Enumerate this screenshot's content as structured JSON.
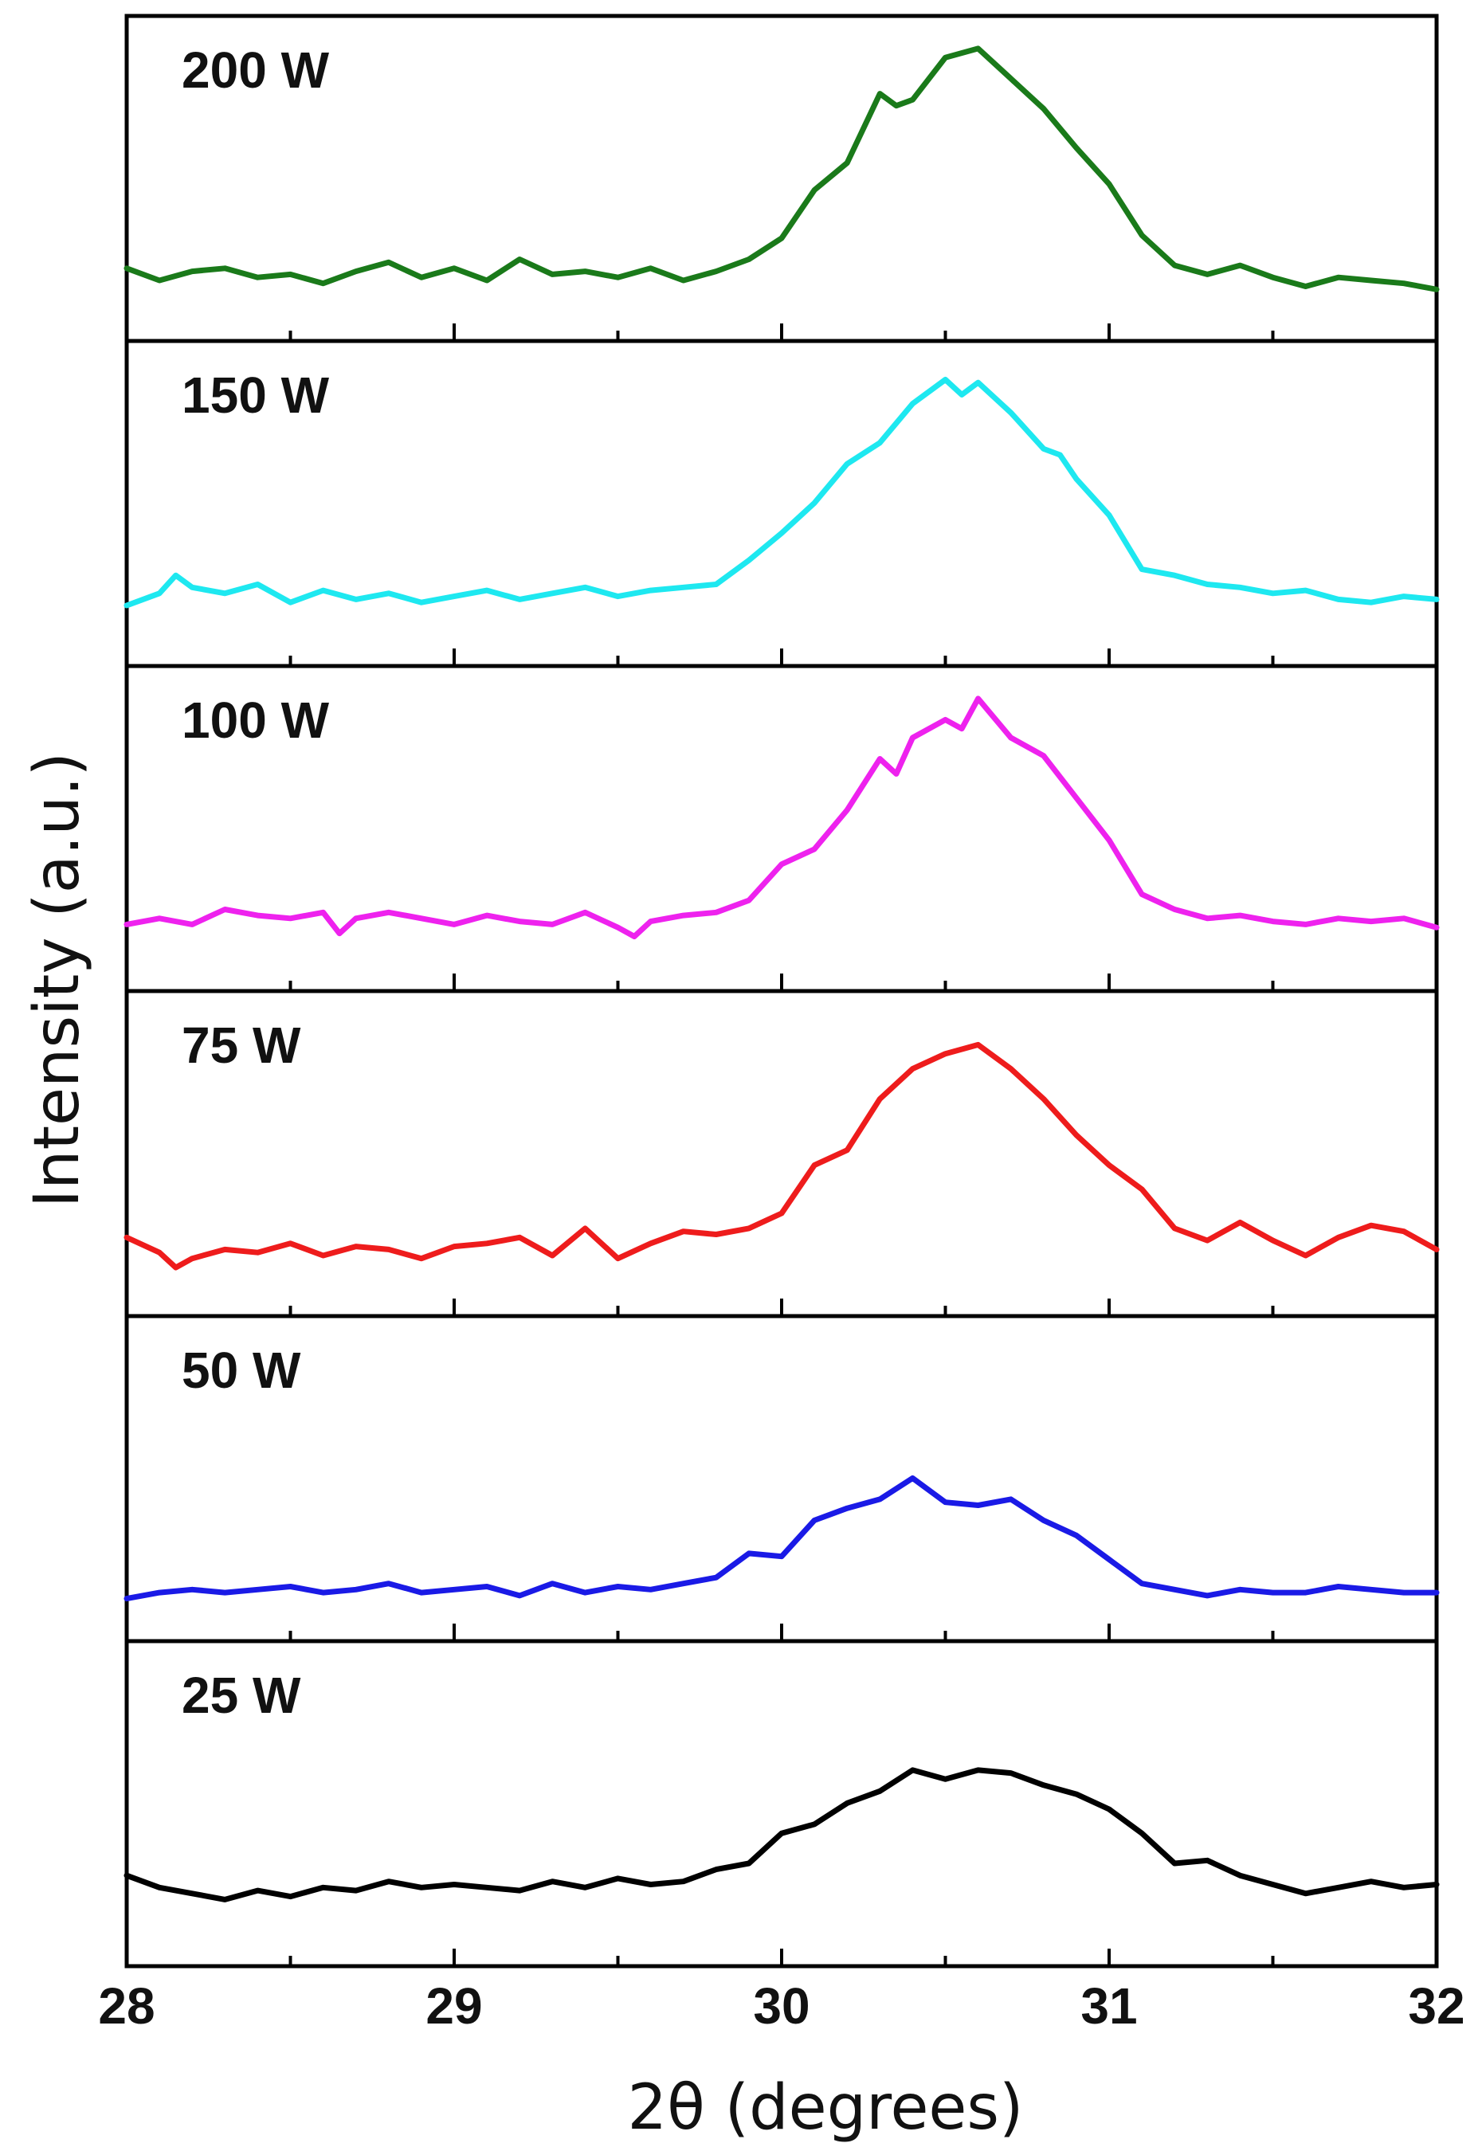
{
  "chart_data": {
    "type": "line",
    "layout": "stacked-panels",
    "xlabel": "2θ (degrees)",
    "ylabel": "Intensity (a.u.)",
    "xlim": [
      28,
      32
    ],
    "x_ticks": [
      "28",
      "29",
      "30",
      "31",
      "32"
    ],
    "x_minor_step": 0.5,
    "ylim": [
      0,
      1
    ],
    "y_ticks_shown": false,
    "series": [
      {
        "name": "200 W",
        "color": "#1a7a1a",
        "points": [
          [
            28.0,
            0.22
          ],
          [
            28.1,
            0.18
          ],
          [
            28.2,
            0.21
          ],
          [
            28.3,
            0.22
          ],
          [
            28.4,
            0.19
          ],
          [
            28.5,
            0.2
          ],
          [
            28.6,
            0.17
          ],
          [
            28.7,
            0.21
          ],
          [
            28.8,
            0.24
          ],
          [
            28.9,
            0.19
          ],
          [
            29.0,
            0.22
          ],
          [
            29.1,
            0.18
          ],
          [
            29.2,
            0.25
          ],
          [
            29.3,
            0.2
          ],
          [
            29.4,
            0.21
          ],
          [
            29.5,
            0.19
          ],
          [
            29.6,
            0.22
          ],
          [
            29.7,
            0.18
          ],
          [
            29.8,
            0.21
          ],
          [
            29.9,
            0.25
          ],
          [
            30.0,
            0.32
          ],
          [
            30.1,
            0.48
          ],
          [
            30.2,
            0.57
          ],
          [
            30.3,
            0.8
          ],
          [
            30.35,
            0.76
          ],
          [
            30.4,
            0.78
          ],
          [
            30.5,
            0.92
          ],
          [
            30.6,
            0.95
          ],
          [
            30.7,
            0.85
          ],
          [
            30.8,
            0.75
          ],
          [
            30.9,
            0.62
          ],
          [
            31.0,
            0.5
          ],
          [
            31.1,
            0.33
          ],
          [
            31.2,
            0.23
          ],
          [
            31.3,
            0.2
          ],
          [
            31.4,
            0.23
          ],
          [
            31.5,
            0.19
          ],
          [
            31.6,
            0.16
          ],
          [
            31.7,
            0.19
          ],
          [
            31.8,
            0.18
          ],
          [
            31.9,
            0.17
          ],
          [
            32.0,
            0.15
          ]
        ]
      },
      {
        "name": "150 W",
        "color": "#1ee8f0",
        "points": [
          [
            28.0,
            0.18
          ],
          [
            28.1,
            0.22
          ],
          [
            28.15,
            0.28
          ],
          [
            28.2,
            0.24
          ],
          [
            28.3,
            0.22
          ],
          [
            28.4,
            0.25
          ],
          [
            28.5,
            0.19
          ],
          [
            28.6,
            0.23
          ],
          [
            28.7,
            0.2
          ],
          [
            28.8,
            0.22
          ],
          [
            28.9,
            0.19
          ],
          [
            29.0,
            0.21
          ],
          [
            29.1,
            0.23
          ],
          [
            29.2,
            0.2
          ],
          [
            29.3,
            0.22
          ],
          [
            29.4,
            0.24
          ],
          [
            29.5,
            0.21
          ],
          [
            29.6,
            0.23
          ],
          [
            29.7,
            0.24
          ],
          [
            29.8,
            0.25
          ],
          [
            29.9,
            0.33
          ],
          [
            30.0,
            0.42
          ],
          [
            30.1,
            0.52
          ],
          [
            30.2,
            0.65
          ],
          [
            30.3,
            0.72
          ],
          [
            30.4,
            0.85
          ],
          [
            30.5,
            0.93
          ],
          [
            30.55,
            0.88
          ],
          [
            30.6,
            0.92
          ],
          [
            30.7,
            0.82
          ],
          [
            30.8,
            0.7
          ],
          [
            30.85,
            0.68
          ],
          [
            30.9,
            0.6
          ],
          [
            31.0,
            0.48
          ],
          [
            31.1,
            0.3
          ],
          [
            31.2,
            0.28
          ],
          [
            31.3,
            0.25
          ],
          [
            31.4,
            0.24
          ],
          [
            31.5,
            0.22
          ],
          [
            31.6,
            0.23
          ],
          [
            31.7,
            0.2
          ],
          [
            31.8,
            0.19
          ],
          [
            31.9,
            0.21
          ],
          [
            32.0,
            0.2
          ]
        ]
      },
      {
        "name": "100 W",
        "color": "#ee22ee",
        "points": [
          [
            28.0,
            0.2
          ],
          [
            28.1,
            0.22
          ],
          [
            28.2,
            0.2
          ],
          [
            28.3,
            0.25
          ],
          [
            28.4,
            0.23
          ],
          [
            28.5,
            0.22
          ],
          [
            28.6,
            0.24
          ],
          [
            28.65,
            0.17
          ],
          [
            28.7,
            0.22
          ],
          [
            28.8,
            0.24
          ],
          [
            28.9,
            0.22
          ],
          [
            29.0,
            0.2
          ],
          [
            29.1,
            0.23
          ],
          [
            29.2,
            0.21
          ],
          [
            29.3,
            0.2
          ],
          [
            29.4,
            0.24
          ],
          [
            29.5,
            0.19
          ],
          [
            29.55,
            0.16
          ],
          [
            29.6,
            0.21
          ],
          [
            29.7,
            0.23
          ],
          [
            29.8,
            0.24
          ],
          [
            29.9,
            0.28
          ],
          [
            30.0,
            0.4
          ],
          [
            30.1,
            0.45
          ],
          [
            30.2,
            0.58
          ],
          [
            30.3,
            0.75
          ],
          [
            30.35,
            0.7
          ],
          [
            30.4,
            0.82
          ],
          [
            30.5,
            0.88
          ],
          [
            30.55,
            0.85
          ],
          [
            30.6,
            0.95
          ],
          [
            30.7,
            0.82
          ],
          [
            30.8,
            0.76
          ],
          [
            30.9,
            0.62
          ],
          [
            31.0,
            0.48
          ],
          [
            31.1,
            0.3
          ],
          [
            31.2,
            0.25
          ],
          [
            31.3,
            0.22
          ],
          [
            31.4,
            0.23
          ],
          [
            31.5,
            0.21
          ],
          [
            31.6,
            0.2
          ],
          [
            31.7,
            0.22
          ],
          [
            31.8,
            0.21
          ],
          [
            31.9,
            0.22
          ],
          [
            32.0,
            0.19
          ]
        ]
      },
      {
        "name": "75 W",
        "color": "#ee1c1c",
        "points": [
          [
            28.0,
            0.24
          ],
          [
            28.1,
            0.19
          ],
          [
            28.15,
            0.14
          ],
          [
            28.2,
            0.17
          ],
          [
            28.3,
            0.2
          ],
          [
            28.4,
            0.19
          ],
          [
            28.5,
            0.22
          ],
          [
            28.6,
            0.18
          ],
          [
            28.7,
            0.21
          ],
          [
            28.8,
            0.2
          ],
          [
            28.9,
            0.17
          ],
          [
            29.0,
            0.21
          ],
          [
            29.1,
            0.22
          ],
          [
            29.2,
            0.24
          ],
          [
            29.3,
            0.18
          ],
          [
            29.4,
            0.27
          ],
          [
            29.5,
            0.17
          ],
          [
            29.6,
            0.22
          ],
          [
            29.7,
            0.26
          ],
          [
            29.8,
            0.25
          ],
          [
            29.9,
            0.27
          ],
          [
            30.0,
            0.32
          ],
          [
            30.1,
            0.48
          ],
          [
            30.2,
            0.53
          ],
          [
            30.3,
            0.7
          ],
          [
            30.4,
            0.8
          ],
          [
            30.5,
            0.85
          ],
          [
            30.6,
            0.88
          ],
          [
            30.7,
            0.8
          ],
          [
            30.8,
            0.7
          ],
          [
            30.9,
            0.58
          ],
          [
            31.0,
            0.48
          ],
          [
            31.1,
            0.4
          ],
          [
            31.2,
            0.27
          ],
          [
            31.3,
            0.23
          ],
          [
            31.4,
            0.29
          ],
          [
            31.5,
            0.23
          ],
          [
            31.6,
            0.18
          ],
          [
            31.7,
            0.24
          ],
          [
            31.8,
            0.28
          ],
          [
            31.9,
            0.26
          ],
          [
            32.0,
            0.2
          ]
        ]
      },
      {
        "name": "50 W",
        "color": "#1a1ae6",
        "points": [
          [
            28.0,
            0.12
          ],
          [
            28.1,
            0.14
          ],
          [
            28.2,
            0.15
          ],
          [
            28.3,
            0.14
          ],
          [
            28.4,
            0.15
          ],
          [
            28.5,
            0.16
          ],
          [
            28.6,
            0.14
          ],
          [
            28.7,
            0.15
          ],
          [
            28.8,
            0.17
          ],
          [
            28.9,
            0.14
          ],
          [
            29.0,
            0.15
          ],
          [
            29.1,
            0.16
          ],
          [
            29.2,
            0.13
          ],
          [
            29.3,
            0.17
          ],
          [
            29.4,
            0.14
          ],
          [
            29.5,
            0.16
          ],
          [
            29.6,
            0.15
          ],
          [
            29.7,
            0.17
          ],
          [
            29.8,
            0.19
          ],
          [
            29.9,
            0.27
          ],
          [
            30.0,
            0.26
          ],
          [
            30.1,
            0.38
          ],
          [
            30.2,
            0.42
          ],
          [
            30.3,
            0.45
          ],
          [
            30.4,
            0.52
          ],
          [
            30.5,
            0.44
          ],
          [
            30.6,
            0.43
          ],
          [
            30.7,
            0.45
          ],
          [
            30.8,
            0.38
          ],
          [
            30.9,
            0.33
          ],
          [
            31.0,
            0.25
          ],
          [
            31.1,
            0.17
          ],
          [
            31.2,
            0.15
          ],
          [
            31.3,
            0.13
          ],
          [
            31.4,
            0.15
          ],
          [
            31.5,
            0.14
          ],
          [
            31.6,
            0.14
          ],
          [
            31.7,
            0.16
          ],
          [
            31.8,
            0.15
          ],
          [
            31.9,
            0.14
          ],
          [
            32.0,
            0.14
          ]
        ]
      },
      {
        "name": "25 W",
        "color": "#000000",
        "points": [
          [
            28.0,
            0.28
          ],
          [
            28.1,
            0.24
          ],
          [
            28.2,
            0.22
          ],
          [
            28.3,
            0.2
          ],
          [
            28.4,
            0.23
          ],
          [
            28.5,
            0.21
          ],
          [
            28.6,
            0.24
          ],
          [
            28.7,
            0.23
          ],
          [
            28.8,
            0.26
          ],
          [
            28.9,
            0.24
          ],
          [
            29.0,
            0.25
          ],
          [
            29.1,
            0.24
          ],
          [
            29.2,
            0.23
          ],
          [
            29.3,
            0.26
          ],
          [
            29.4,
            0.24
          ],
          [
            29.5,
            0.27
          ],
          [
            29.6,
            0.25
          ],
          [
            29.7,
            0.26
          ],
          [
            29.8,
            0.3
          ],
          [
            29.9,
            0.32
          ],
          [
            30.0,
            0.42
          ],
          [
            30.1,
            0.45
          ],
          [
            30.2,
            0.52
          ],
          [
            30.3,
            0.56
          ],
          [
            30.4,
            0.63
          ],
          [
            30.5,
            0.6
          ],
          [
            30.6,
            0.63
          ],
          [
            30.7,
            0.62
          ],
          [
            30.8,
            0.58
          ],
          [
            30.9,
            0.55
          ],
          [
            31.0,
            0.5
          ],
          [
            31.1,
            0.42
          ],
          [
            31.2,
            0.32
          ],
          [
            31.3,
            0.33
          ],
          [
            31.4,
            0.28
          ],
          [
            31.5,
            0.25
          ],
          [
            31.6,
            0.22
          ],
          [
            31.7,
            0.24
          ],
          [
            31.8,
            0.26
          ],
          [
            31.9,
            0.24
          ],
          [
            32.0,
            0.25
          ]
        ]
      }
    ]
  }
}
